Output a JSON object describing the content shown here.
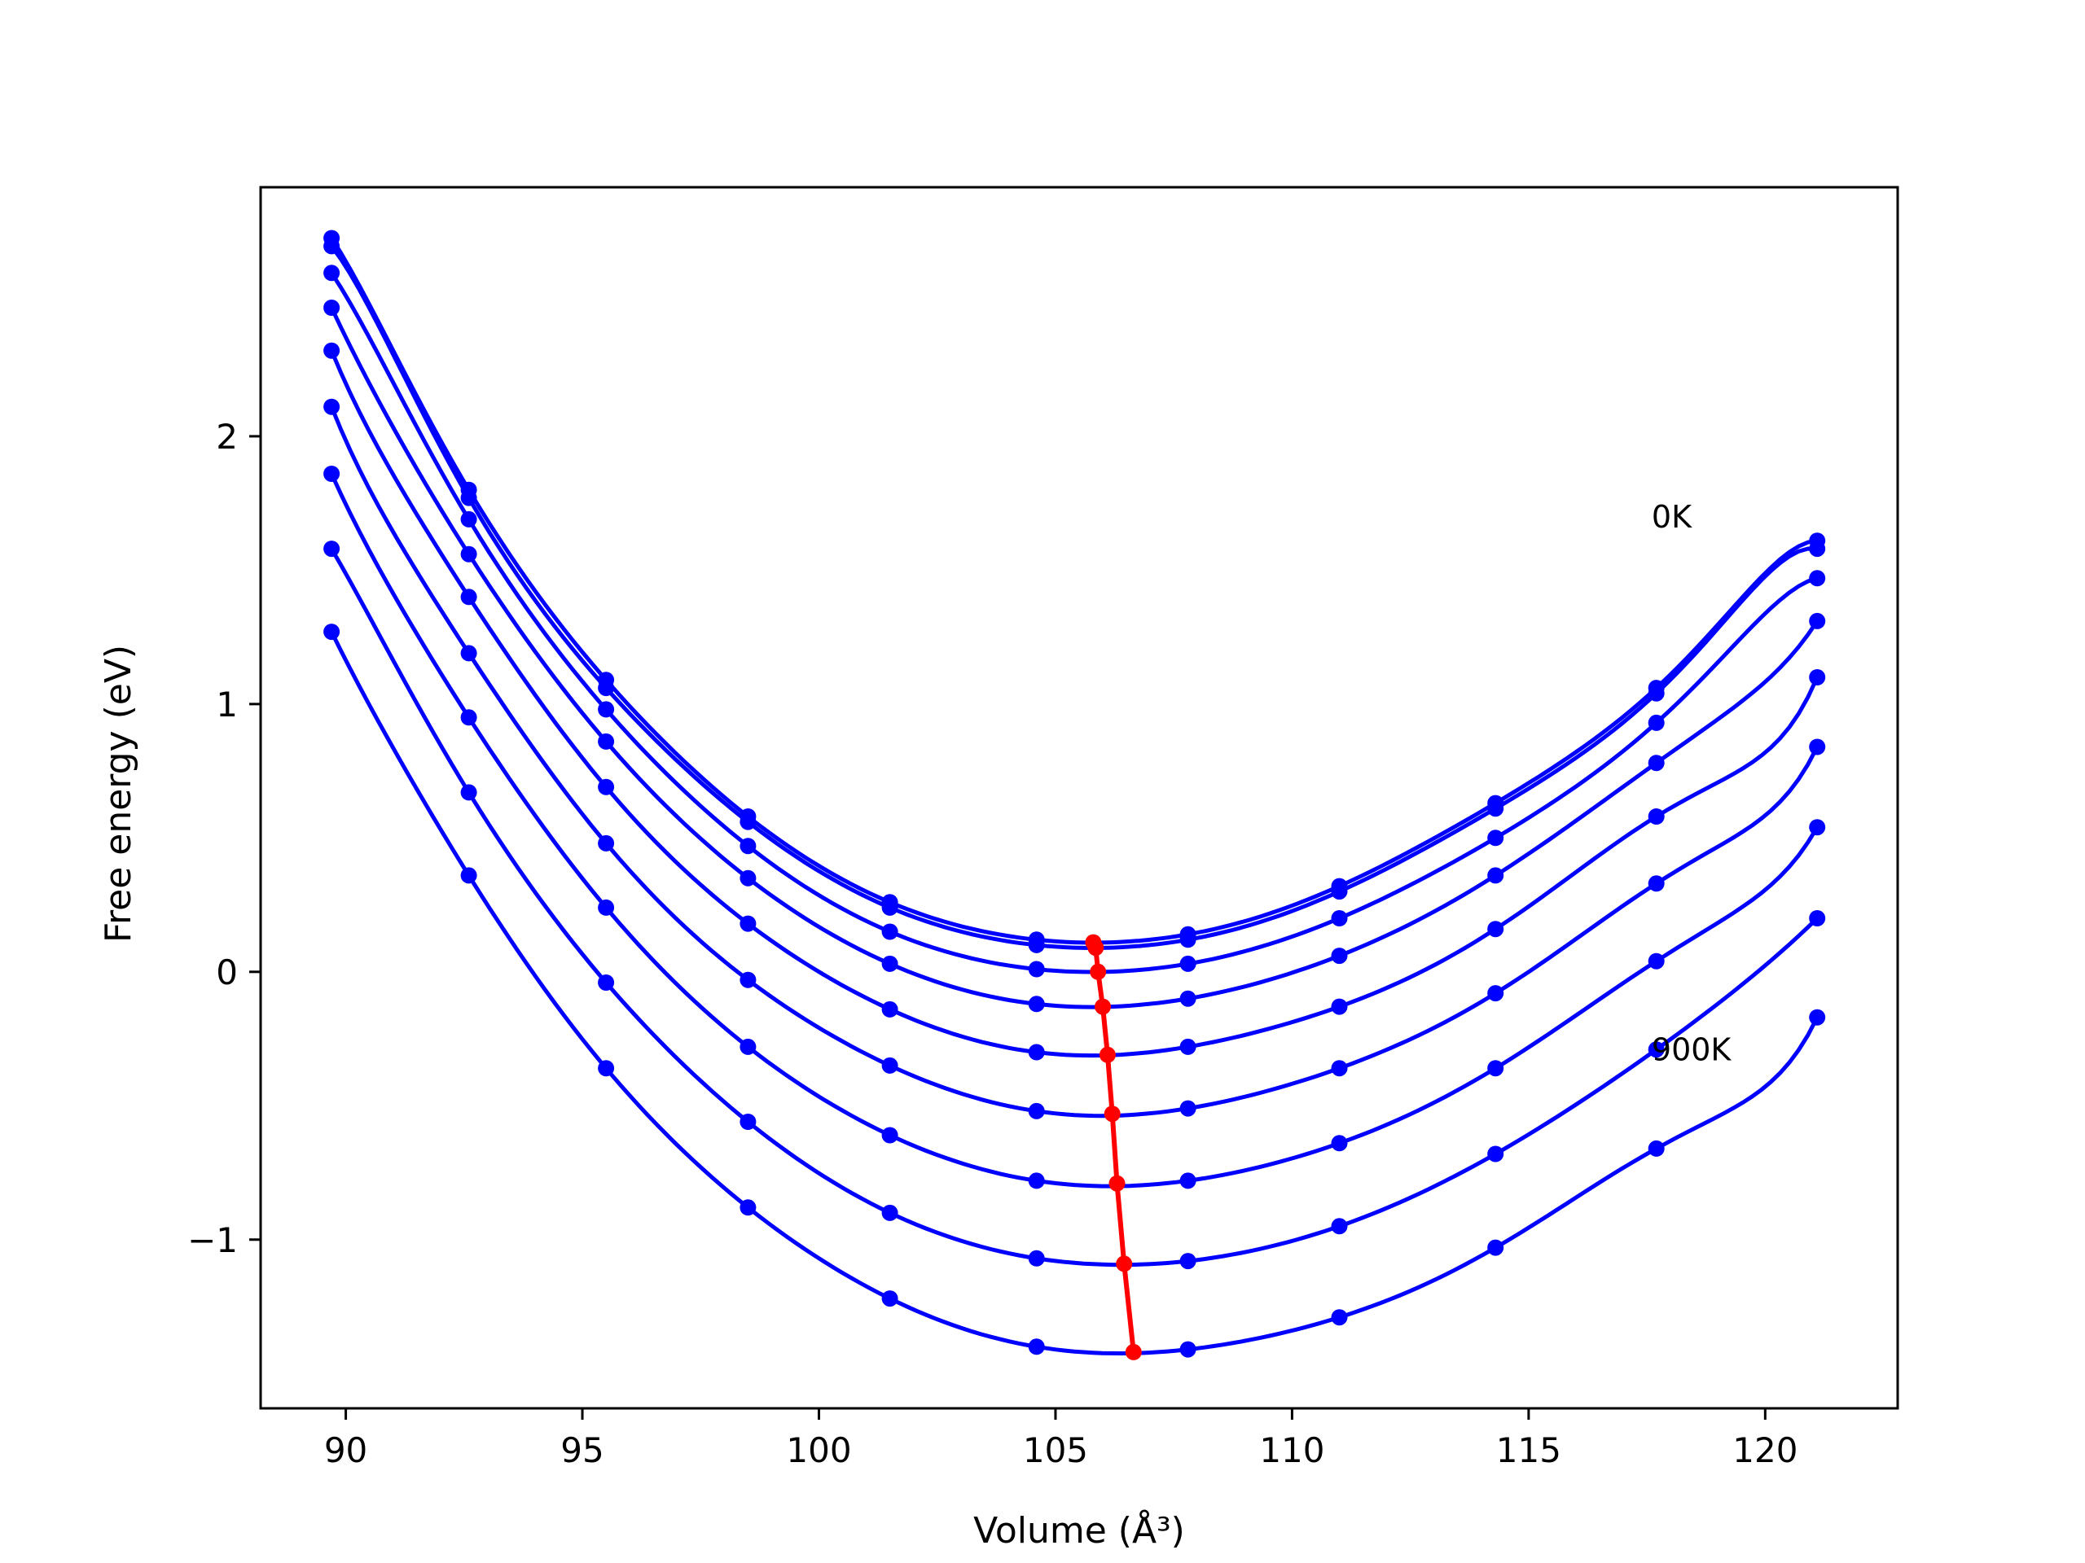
{
  "chart_data": {
    "type": "line",
    "title": "",
    "xlabel": "Volume (Å³)",
    "ylabel": "Free energy (eV)",
    "xlim": [
      88.2,
      122.8
    ],
    "ylim": [
      -1.63,
      2.93
    ],
    "xticks": [
      {
        "value": 90,
        "label": "90"
      },
      {
        "value": 95,
        "label": "95"
      },
      {
        "value": 100,
        "label": "100"
      },
      {
        "value": 105,
        "label": "105"
      },
      {
        "value": 110,
        "label": "110"
      },
      {
        "value": 115,
        "label": "115"
      },
      {
        "value": 120,
        "label": "120"
      }
    ],
    "yticks": [
      {
        "value": -1,
        "label": "−1"
      },
      {
        "value": 0,
        "label": "0"
      },
      {
        "value": 1,
        "label": "1"
      },
      {
        "value": 2,
        "label": "2"
      }
    ],
    "grid": false,
    "legend": "none",
    "colors": {
      "series": "#0000ff",
      "minima": "#ff0000"
    },
    "annotations": [
      {
        "text": "0K",
        "x": 117.6,
        "y": 1.66
      },
      {
        "text": "900K",
        "x": 117.6,
        "y": -0.33
      }
    ],
    "x": [
      89.7,
      92.6,
      95.5,
      98.5,
      101.5,
      104.6,
      107.8,
      111.0,
      114.3,
      117.7,
      121.1
    ],
    "series": [
      {
        "values": [
          2.74,
          1.8,
          1.09,
          0.58,
          0.26,
          0.12,
          0.14,
          0.32,
          0.63,
          1.06,
          1.61
        ]
      },
      {
        "values": [
          2.71,
          1.77,
          1.06,
          0.56,
          0.24,
          0.1,
          0.12,
          0.3,
          0.61,
          1.04,
          1.58
        ]
      },
      {
        "values": [
          2.61,
          1.69,
          0.98,
          0.47,
          0.15,
          0.01,
          0.03,
          0.2,
          0.5,
          0.93,
          1.47
        ]
      },
      {
        "values": [
          2.48,
          1.56,
          0.86,
          0.35,
          0.03,
          -0.12,
          -0.1,
          0.06,
          0.36,
          0.78,
          1.31
        ]
      },
      {
        "values": [
          2.32,
          1.4,
          0.69,
          0.18,
          -0.14,
          -0.3,
          -0.28,
          -0.13,
          0.16,
          0.58,
          1.1
        ]
      },
      {
        "values": [
          2.11,
          1.19,
          0.48,
          -0.03,
          -0.35,
          -0.52,
          -0.51,
          -0.36,
          -0.08,
          0.33,
          0.84
        ]
      },
      {
        "values": [
          1.86,
          0.95,
          0.24,
          -0.28,
          -0.61,
          -0.78,
          -0.78,
          -0.64,
          -0.36,
          0.04,
          0.54
        ]
      },
      {
        "values": [
          1.58,
          0.67,
          -0.04,
          -0.56,
          -0.9,
          -1.07,
          -1.08,
          -0.95,
          -0.68,
          -0.29,
          0.2
        ]
      },
      {
        "values": [
          1.27,
          0.36,
          -0.36,
          -0.88,
          -1.22,
          -1.4,
          -1.41,
          -1.29,
          -1.03,
          -0.66,
          -0.17
        ]
      }
    ],
    "minima": {
      "x": [
        105.8,
        105.85,
        105.9,
        106.0,
        106.1,
        106.2,
        106.3,
        106.45,
        106.65
      ],
      "y": [
        0.11,
        0.09,
        0.0,
        -0.13,
        -0.31,
        -0.53,
        -0.79,
        -1.09,
        -1.42
      ]
    }
  }
}
